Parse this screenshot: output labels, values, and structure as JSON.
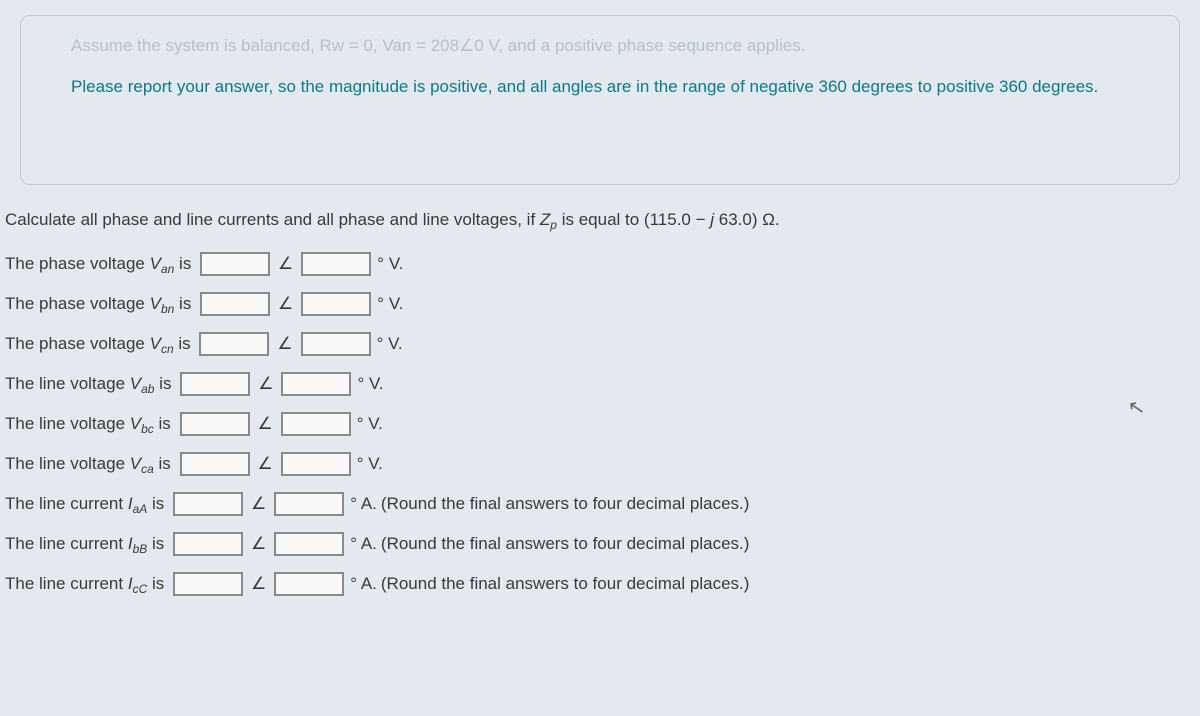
{
  "card": {
    "faded_line": "Assume the system is balanced, Rw = 0, Van = 208∠0  V, and a positive phase sequence applies.",
    "instruction": "Please report your answer, so the magnitude is positive, and all angles are in the range of negative 360 degrees to positive 360 degrees."
  },
  "question": {
    "prefix": "Calculate all phase and line currents and all phase and line voltages, if ",
    "var": "Z",
    "var_sub": "p",
    "middle": " is equal to (115.0 − ",
    "j": "j ",
    "val": "63.0) Ω."
  },
  "rows": [
    {
      "pre": "The phase voltage ",
      "sym": "V",
      "sub": "an",
      "post": " is",
      "unit": "° V.",
      "note": ""
    },
    {
      "pre": "The phase voltage ",
      "sym": "V",
      "sub": "bn",
      "post": " is",
      "unit": "° V.",
      "note": ""
    },
    {
      "pre": "The phase voltage ",
      "sym": "V",
      "sub": "cn",
      "post": " is",
      "unit": "° V.",
      "note": ""
    },
    {
      "pre": "The line voltage ",
      "sym": "V",
      "sub": "ab",
      "post": " is",
      "unit": "° V.",
      "note": ""
    },
    {
      "pre": "The line voltage ",
      "sym": "V",
      "sub": "bc",
      "post": " is",
      "unit": "° V.",
      "note": ""
    },
    {
      "pre": "The line voltage ",
      "sym": "V",
      "sub": "ca",
      "post": " is",
      "unit": "° V.",
      "note": ""
    },
    {
      "pre": "The line current ",
      "sym": "I",
      "sub": "aA",
      "post": " is",
      "unit": "° A.",
      "note": " (Round the final answers to four decimal places.)"
    },
    {
      "pre": "The line current ",
      "sym": "I",
      "sub": "bB",
      "post": " is",
      "unit": "° A.",
      "note": " (Round the final answers to four decimal places.)"
    },
    {
      "pre": "The line current ",
      "sym": "I",
      "sub": "cC",
      "post": " is",
      "unit": "° A.",
      "note": " (Round the final answers to four decimal places.)"
    }
  ],
  "angle_symbol": "∠"
}
